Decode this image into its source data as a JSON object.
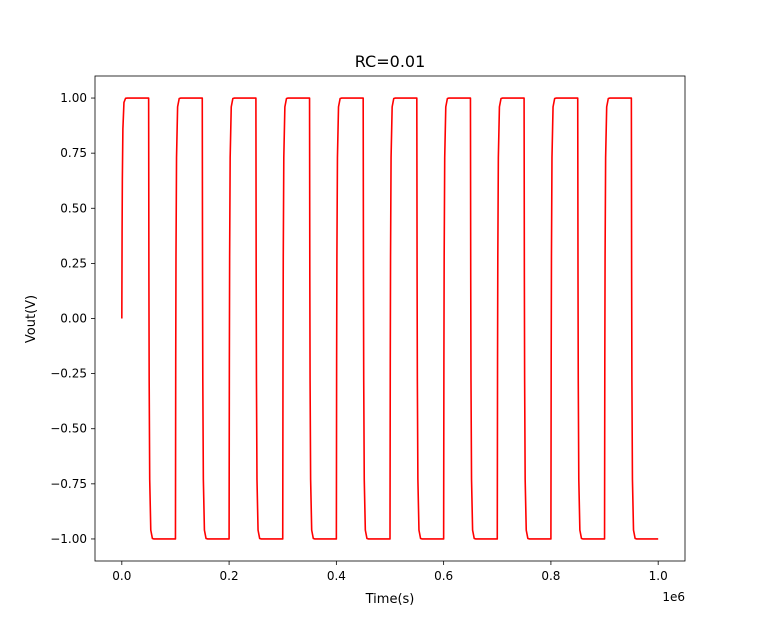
{
  "chart_data": {
    "type": "line",
    "title": "RC=0.01",
    "xlabel": "Time(s)",
    "ylabel": "Vout(V)",
    "x_offset_label": "1e6",
    "xlim": [
      -50000,
      1050000
    ],
    "ylim": [
      -1.1,
      1.1
    ],
    "x_ticks": [
      0,
      200000,
      400000,
      600000,
      800000,
      1000000
    ],
    "x_tick_labels": [
      "0.0",
      "0.2",
      "0.4",
      "0.6",
      "0.8",
      "1.0"
    ],
    "y_ticks": [
      1.0,
      0.75,
      0.5,
      0.25,
      0.0,
      -0.25,
      -0.5,
      -0.75,
      -1.0
    ],
    "y_tick_labels": [
      "1.00",
      "0.75",
      "0.50",
      "0.25",
      "0.00",
      "−0.25",
      "−0.50",
      "−0.75",
      "−1.00"
    ],
    "grid": false,
    "series": [
      {
        "color": "#ff0000",
        "x": [
          0,
          500,
          1000,
          2000,
          4000,
          7000,
          10000,
          50000,
          50500,
          51000,
          52000,
          54000,
          57000,
          60000,
          100000,
          100500,
          101000,
          102000,
          104000,
          107000,
          110000,
          150000,
          150500,
          151000,
          152000,
          154000,
          157000,
          160000,
          200000,
          200500,
          201000,
          202000,
          204000,
          207000,
          210000,
          250000,
          250500,
          251000,
          252000,
          254000,
          257000,
          260000,
          300000,
          300500,
          301000,
          302000,
          304000,
          307000,
          310000,
          350000,
          350500,
          351000,
          352000,
          354000,
          357000,
          360000,
          400000,
          400500,
          401000,
          402000,
          404000,
          407000,
          410000,
          450000,
          450500,
          451000,
          452000,
          454000,
          457000,
          460000,
          500000,
          500500,
          501000,
          502000,
          504000,
          507000,
          510000,
          550000,
          550500,
          551000,
          552000,
          554000,
          557000,
          560000,
          600000,
          600500,
          601000,
          602000,
          604000,
          607000,
          610000,
          650000,
          650500,
          651000,
          652000,
          654000,
          657000,
          660000,
          700000,
          700500,
          701000,
          702000,
          704000,
          707000,
          710000,
          750000,
          750500,
          751000,
          752000,
          754000,
          757000,
          760000,
          800000,
          800500,
          801000,
          802000,
          804000,
          807000,
          810000,
          850000,
          850500,
          851000,
          852000,
          854000,
          857000,
          860000,
          900000,
          900500,
          901000,
          902000,
          904000,
          907000,
          910000,
          950000,
          950500,
          951000,
          952000,
          954000,
          957000,
          960000,
          1000000
        ],
        "y": [
          0.0,
          0.39,
          0.63,
          0.86,
          0.98,
          0.999,
          1.0,
          1.0,
          0.2,
          -0.28,
          -0.73,
          -0.96,
          -0.998,
          -1.0,
          -1.0,
          -0.2,
          0.28,
          0.73,
          0.96,
          0.998,
          1.0,
          1.0,
          0.2,
          -0.28,
          -0.73,
          -0.96,
          -0.998,
          -1.0,
          -1.0,
          -0.2,
          0.28,
          0.73,
          0.96,
          0.998,
          1.0,
          1.0,
          0.2,
          -0.28,
          -0.73,
          -0.96,
          -0.998,
          -1.0,
          -1.0,
          -0.2,
          0.28,
          0.73,
          0.96,
          0.998,
          1.0,
          1.0,
          0.2,
          -0.28,
          -0.73,
          -0.96,
          -0.998,
          -1.0,
          -1.0,
          -0.2,
          0.28,
          0.73,
          0.96,
          0.998,
          1.0,
          1.0,
          0.2,
          -0.28,
          -0.73,
          -0.96,
          -0.998,
          -1.0,
          -1.0,
          -0.2,
          0.28,
          0.73,
          0.96,
          0.998,
          1.0,
          1.0,
          0.2,
          -0.28,
          -0.73,
          -0.96,
          -0.998,
          -1.0,
          -1.0,
          -0.2,
          0.28,
          0.73,
          0.96,
          0.998,
          1.0,
          1.0,
          0.2,
          -0.28,
          -0.73,
          -0.96,
          -0.998,
          -1.0,
          -1.0,
          -0.2,
          0.28,
          0.73,
          0.96,
          0.998,
          1.0,
          1.0,
          0.2,
          -0.28,
          -0.73,
          -0.96,
          -0.998,
          -1.0,
          -1.0,
          -0.2,
          0.28,
          0.73,
          0.96,
          0.998,
          1.0,
          1.0,
          0.2,
          -0.28,
          -0.73,
          -0.96,
          -0.998,
          -1.0,
          -1.0,
          -0.2,
          0.28,
          0.73,
          0.96,
          0.998,
          1.0,
          1.0,
          0.2,
          -0.28,
          -0.73,
          -0.96,
          -0.998,
          -1.0,
          -1.0
        ]
      }
    ]
  }
}
